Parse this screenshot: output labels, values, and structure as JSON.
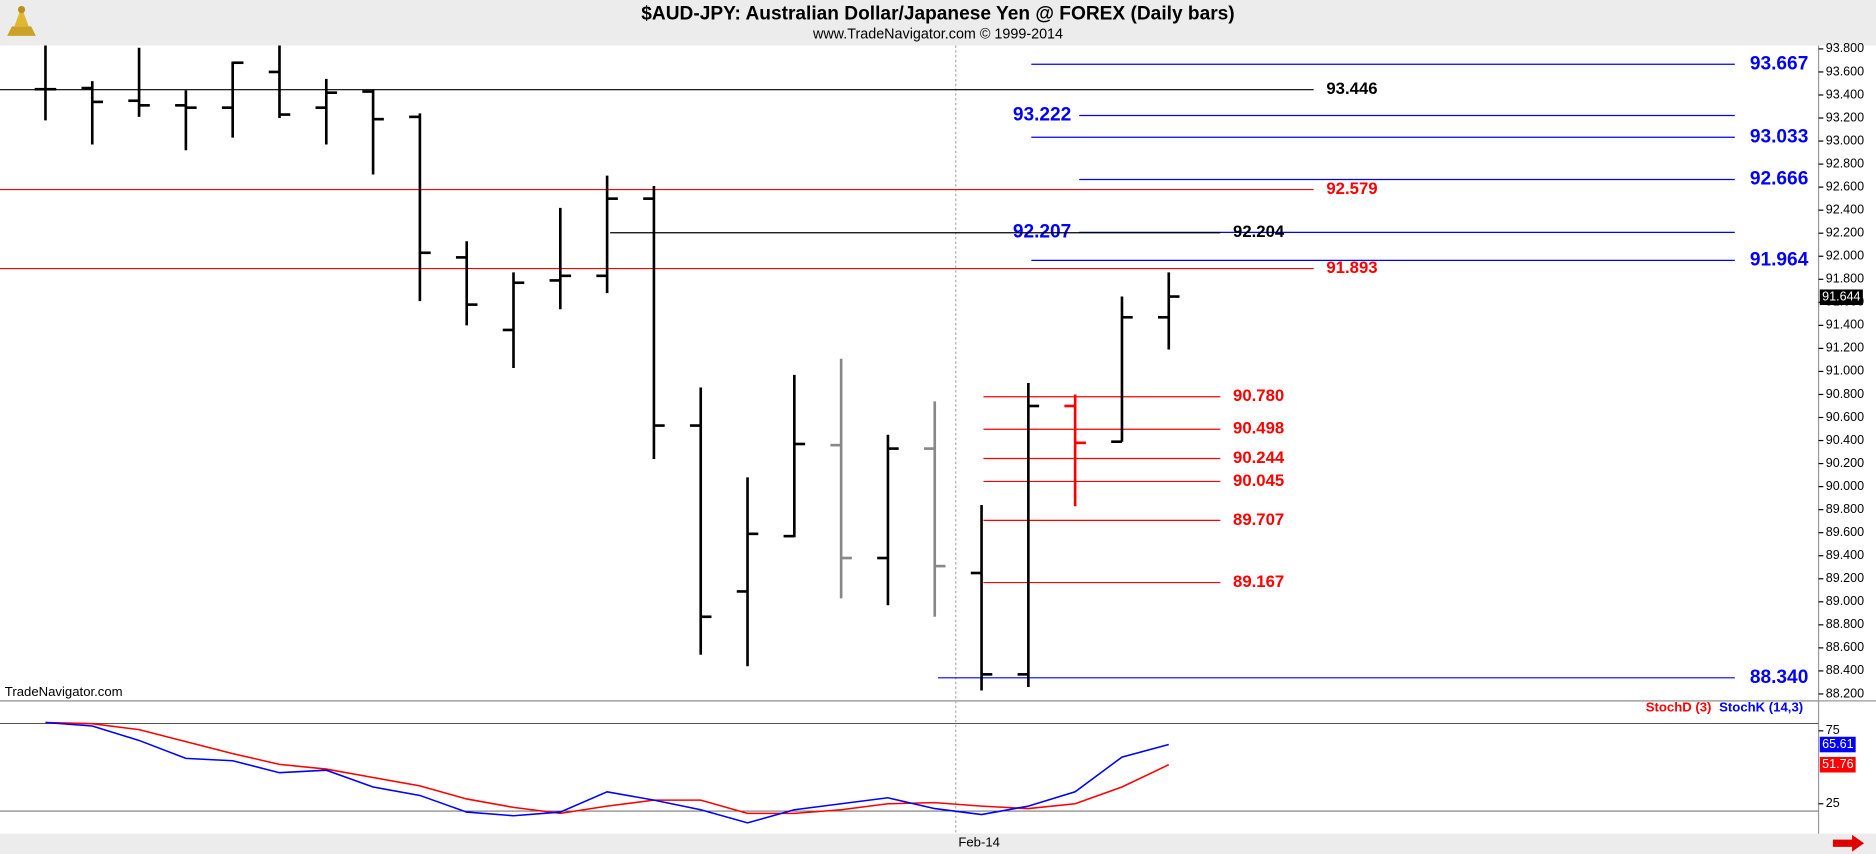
{
  "chart_data": [
    {
      "type": "ohlc",
      "title": "$AUD-JPY:  Australian Dollar/Japanese Yen @ FOREX  (Daily bars)",
      "subtitle": "www.TradeNavigator.com © 1999-2014",
      "watermark": "TradeNavigator.com",
      "categories": [
        null,
        null,
        null,
        null,
        null,
        null,
        null,
        null,
        null,
        null,
        null,
        null,
        null,
        null,
        null,
        null,
        null,
        null,
        null,
        null,
        "Feb-14",
        null,
        null,
        null,
        null
      ],
      "open": [
        93.45,
        93.46,
        93.35,
        93.31,
        93.29,
        93.6,
        93.29,
        93.43,
        93.21,
        91.99,
        91.36,
        91.79,
        91.83,
        92.5,
        90.53,
        89.09,
        89.57,
        90.36,
        89.38,
        90.33,
        89.25,
        88.37,
        90.7,
        90.39,
        91.47
      ],
      "high": [
        93.83,
        93.52,
        93.81,
        93.44,
        93.69,
        93.83,
        93.54,
        93.45,
        93.24,
        92.13,
        91.86,
        92.42,
        92.7,
        92.61,
        90.86,
        90.08,
        90.97,
        91.11,
        90.45,
        90.74,
        89.84,
        90.9,
        90.8,
        91.65,
        91.86
      ],
      "low": [
        93.18,
        92.97,
        93.21,
        92.92,
        93.03,
        93.2,
        92.97,
        92.71,
        91.61,
        91.4,
        91.03,
        91.54,
        91.68,
        90.24,
        88.54,
        88.44,
        89.56,
        89.03,
        88.97,
        88.87,
        88.23,
        88.26,
        89.83,
        90.39,
        91.19
      ],
      "close": [
        93.45,
        93.34,
        93.31,
        93.29,
        93.68,
        93.23,
        93.42,
        93.19,
        92.03,
        91.58,
        91.77,
        91.83,
        92.5,
        90.53,
        88.87,
        89.59,
        90.37,
        89.38,
        90.33,
        89.31,
        88.37,
        90.7,
        90.38,
        91.47,
        91.65
      ],
      "colors": [
        "#000000",
        "#000000",
        "#000000",
        "#000000",
        "#000000",
        "#000000",
        "#000000",
        "#000000",
        "#000000",
        "#000000",
        "#000000",
        "#000000",
        "#000000",
        "#000000",
        "#000000",
        "#000000",
        "#000000",
        "#888888",
        "#000000",
        "#888888",
        "#000000",
        "#000000",
        "#ff0000",
        "#000000",
        "#000000"
      ],
      "ylim": [
        88.15,
        93.83
      ],
      "yticks": [
        {
          "value": 88.2,
          "label": "88.200"
        },
        {
          "value": 88.4,
          "label": "88.400"
        },
        {
          "value": 88.6,
          "label": "88.600"
        },
        {
          "value": 88.8,
          "label": "88.800"
        },
        {
          "value": 89.0,
          "label": "89.000"
        },
        {
          "value": 89.2,
          "label": "89.200"
        },
        {
          "value": 89.4,
          "label": "89.400"
        },
        {
          "value": 89.6,
          "label": "89.600"
        },
        {
          "value": 89.8,
          "label": "89.800"
        },
        {
          "value": 90.0,
          "label": "90.000"
        },
        {
          "value": 90.2,
          "label": "90.200"
        },
        {
          "value": 90.4,
          "label": "90.400"
        },
        {
          "value": 90.6,
          "label": "90.600"
        },
        {
          "value": 90.8,
          "label": "90.800"
        },
        {
          "value": 91.0,
          "label": "91.000"
        },
        {
          "value": 91.2,
          "label": "91.200"
        },
        {
          "value": 91.4,
          "label": "91.400"
        },
        {
          "value": 91.6,
          "label": "91.600"
        },
        {
          "value": 91.8,
          "label": "91.800"
        },
        {
          "value": 92.0,
          "label": "92.000"
        },
        {
          "value": 92.2,
          "label": "92.200"
        },
        {
          "value": 92.4,
          "label": "92.400"
        },
        {
          "value": 92.6,
          "label": "92.600"
        },
        {
          "value": 92.8,
          "label": "92.800"
        },
        {
          "value": 93.0,
          "label": "93.000"
        },
        {
          "value": 93.2,
          "label": "93.200"
        },
        {
          "value": 93.4,
          "label": "93.400"
        },
        {
          "value": 93.6,
          "label": "93.600"
        },
        {
          "value": 93.8,
          "label": "93.800"
        }
      ],
      "last_price": {
        "value": 91.644,
        "label": "91.644"
      },
      "levels": [
        {
          "value": 93.667,
          "label": "93.667",
          "color": "#0000ff"
        },
        {
          "value": 93.446,
          "label": "93.446",
          "color": "#000000"
        },
        {
          "value": 93.222,
          "label": "93.222",
          "color": "#0000ff"
        },
        {
          "value": 93.033,
          "label": "93.033",
          "color": "#0000ff"
        },
        {
          "value": 92.666,
          "label": "92.666",
          "color": "#0000ff"
        },
        {
          "value": 92.579,
          "label": "92.579",
          "color": "#ff0000"
        },
        {
          "value": 92.207,
          "label": "92.207",
          "color": "#0000ff"
        },
        {
          "value": 92.204,
          "label": "92.204",
          "color": "#000000"
        },
        {
          "value": 91.964,
          "label": "91.964",
          "color": "#0000ff"
        },
        {
          "value": 91.893,
          "label": "91.893",
          "color": "#ff0000"
        },
        {
          "value": 90.78,
          "label": "90.780",
          "color": "#ff0000"
        },
        {
          "value": 90.498,
          "label": "90.498",
          "color": "#ff0000"
        },
        {
          "value": 90.244,
          "label": "90.244",
          "color": "#ff0000"
        },
        {
          "value": 90.045,
          "label": "90.045",
          "color": "#ff0000"
        },
        {
          "value": 89.707,
          "label": "89.707",
          "color": "#ff0000"
        },
        {
          "value": 89.167,
          "label": "89.167",
          "color": "#ff0000"
        },
        {
          "value": 88.34,
          "label": "88.340",
          "color": "#0000ff"
        }
      ]
    },
    {
      "type": "line",
      "series": [
        {
          "name": "StochD (3)",
          "color": "#ff0000",
          "values": [
            80.7,
            79.9,
            75.8,
            67.6,
            59.4,
            52,
            48.8,
            43,
            37.3,
            28.3,
            22.5,
            18.4,
            23.4,
            27.5,
            27.5,
            18.4,
            18.4,
            20.9,
            25,
            25.8,
            23.4,
            21.7,
            25,
            36.5,
            51.76
          ]
        },
        {
          "name": "StochK (14,3)",
          "color": "#0000ff",
          "values": [
            80.7,
            78.3,
            68.4,
            56.1,
            54.5,
            46.3,
            48,
            36.5,
            30.7,
            19.3,
            16.8,
            19.3,
            33.2,
            27.5,
            20.9,
            11.9,
            20.9,
            25,
            29.1,
            21.7,
            17.6,
            23.4,
            33.2,
            57,
            65.61
          ]
        }
      ],
      "ylim": [
        4.5,
        94.7
      ],
      "yticks": [
        25,
        75
      ],
      "reference_lines": [
        20,
        80
      ]
    }
  ]
}
